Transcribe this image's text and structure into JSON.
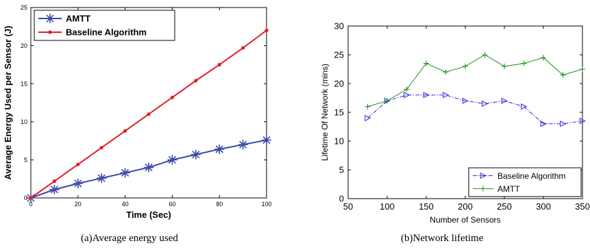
{
  "chart_data": [
    {
      "type": "line",
      "caption": "(a)Average energy used",
      "xlabel": "Time (Sec)",
      "ylabel": "Average Energy Used per Sensor (J)",
      "xlim": [
        0,
        100
      ],
      "ylim": [
        0,
        25
      ],
      "xticks": [
        0,
        20,
        40,
        60,
        80,
        100
      ],
      "yticks": [
        0,
        5,
        10,
        15,
        20,
        25
      ],
      "grid": false,
      "legend_position": "top-left",
      "x": [
        0,
        10,
        20,
        30,
        40,
        50,
        60,
        70,
        80,
        90,
        100
      ],
      "series": [
        {
          "name": "AMTT",
          "color": "#3b49a8",
          "marker": "star",
          "values": [
            0,
            1.1,
            1.9,
            2.6,
            3.3,
            4.0,
            5.0,
            5.7,
            6.4,
            7.0,
            7.6
          ]
        },
        {
          "name": "Baseline Algorithm",
          "color": "#e01f25",
          "marker": "dot",
          "values": [
            0,
            2.2,
            4.4,
            6.6,
            8.8,
            11.0,
            13.2,
            15.4,
            17.5,
            19.7,
            22.0
          ]
        }
      ]
    },
    {
      "type": "line",
      "caption": "(b)Network lifetime",
      "xlabel": "Number of Sensors",
      "ylabel": "Lifetime Of Network (mins)",
      "xlim": [
        50,
        350
      ],
      "ylim": [
        0,
        30
      ],
      "xticks": [
        50,
        100,
        150,
        200,
        250,
        300,
        350
      ],
      "yticks": [
        0,
        5,
        10,
        15,
        20,
        25,
        30
      ],
      "grid": false,
      "legend_position": "bottom-right",
      "x": [
        75,
        100,
        125,
        150,
        175,
        200,
        225,
        250,
        275,
        300,
        325,
        350
      ],
      "series": [
        {
          "name": "Baseline Algorithm",
          "color": "#2b2bd6",
          "marker": "triangle-right",
          "dash": "dashdot",
          "values": [
            14,
            17,
            18,
            18,
            18,
            17,
            16.5,
            17,
            16,
            13,
            13,
            13.5
          ]
        },
        {
          "name": "AMTT",
          "color": "#1f8f1f",
          "marker": "plus",
          "values": [
            16,
            17,
            19,
            23.5,
            22,
            23,
            25,
            23,
            23.5,
            24.5,
            21.5,
            22.5
          ]
        }
      ]
    }
  ]
}
